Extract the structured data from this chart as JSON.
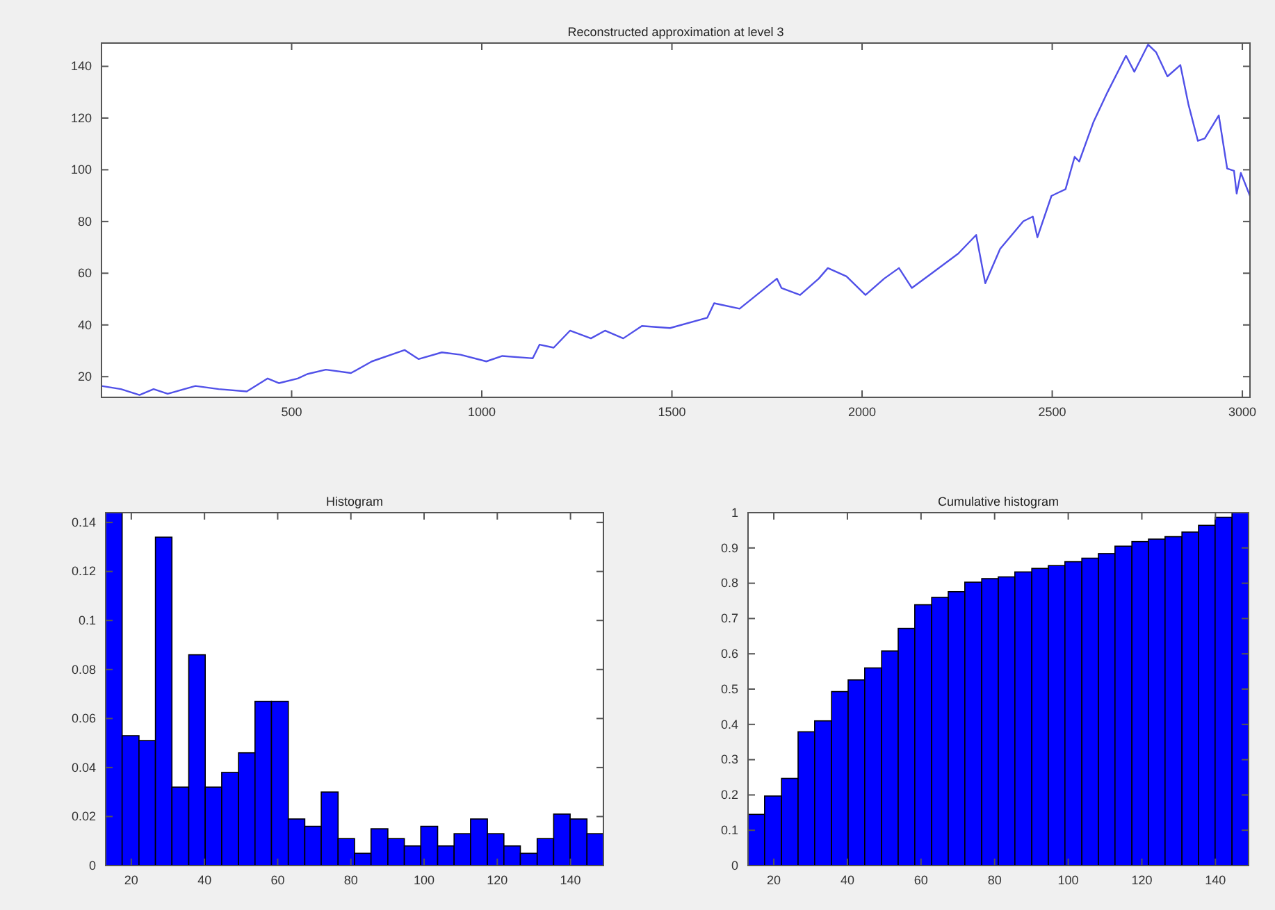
{
  "chart_data": [
    {
      "type": "line",
      "title": "Reconstructed approximation at level 3",
      "x": [
        0,
        51,
        100,
        137,
        174,
        247,
        308,
        382,
        437,
        467,
        516,
        541,
        590,
        656,
        711,
        797,
        834,
        895,
        944,
        1012,
        1054,
        1134,
        1152,
        1189,
        1232,
        1287,
        1324,
        1372,
        1421,
        1495,
        1593,
        1611,
        1678,
        1776,
        1788,
        1837,
        1886,
        1910,
        1959,
        2009,
        2058,
        2097,
        2131,
        2180,
        2253,
        2300,
        2324,
        2363,
        2424,
        2449,
        2461,
        2498,
        2535,
        2559,
        2571,
        2608,
        2645,
        2694,
        2716,
        2752,
        2773,
        2803,
        2837,
        2858,
        2883,
        2901,
        2938,
        2960,
        2978,
        2985,
        2996,
        3020
      ],
      "series": [
        {
          "color": "#5050e8",
          "values": [
            16.4,
            15.2,
            12.9,
            15.2,
            13.4,
            16.4,
            15.2,
            14.3,
            19.3,
            17.5,
            19.3,
            21,
            22.7,
            21.4,
            25.9,
            30.3,
            26.8,
            29.4,
            28.5,
            25.9,
            28,
            27.1,
            32.4,
            31.2,
            37.8,
            34.8,
            37.8,
            34.8,
            39.6,
            38.8,
            42.8,
            48.4,
            46.3,
            57.9,
            54.3,
            51.6,
            57.9,
            62,
            58.8,
            51.6,
            57.9,
            62,
            54.3,
            59.6,
            67.6,
            74.8,
            56.1,
            69.4,
            80.1,
            81.9,
            73.9,
            89.9,
            92.5,
            105,
            103.2,
            118.3,
            129.9,
            144.1,
            137.9,
            148.4,
            145.5,
            136.1,
            140.5,
            125.4,
            111.2,
            112.1,
            121,
            100.5,
            99.6,
            90.8,
            98.8,
            89.9
          ]
        }
      ],
      "xlim": [
        0,
        3020
      ],
      "xticks": [
        500,
        1000,
        1500,
        2000,
        2500,
        3000
      ],
      "ylim": [
        12,
        149
      ],
      "yticks": [
        20,
        40,
        60,
        80,
        100,
        120,
        140
      ]
    },
    {
      "type": "histogram",
      "title": "Histogram",
      "color": "#0000ff",
      "bins": [
        13,
        17.5,
        22.1,
        26.6,
        31.1,
        35.7,
        40.2,
        44.7,
        49.3,
        53.8,
        58.3,
        62.9,
        67.4,
        71.9,
        76.5,
        81,
        85.5,
        90.1,
        94.6,
        99.1,
        103.7,
        108.2,
        112.7,
        117.3,
        121.8,
        126.3,
        130.9,
        135.4,
        139.9,
        144.5,
        149
      ],
      "values": [
        0.144,
        0.053,
        0.051,
        0.134,
        0.032,
        0.086,
        0.032,
        0.038,
        0.046,
        0.067,
        0.067,
        0.019,
        0.016,
        0.03,
        0.011,
        0.005,
        0.015,
        0.011,
        0.008,
        0.016,
        0.008,
        0.013,
        0.019,
        0.013,
        0.008,
        0.005,
        0.011,
        0.021,
        0.019,
        0.013
      ],
      "xlim": [
        13,
        149
      ],
      "xticks": [
        20,
        40,
        60,
        80,
        100,
        120,
        140
      ],
      "ylim": [
        0,
        0.144
      ],
      "yticks": [
        0,
        0.02,
        0.04,
        0.06,
        0.08,
        0.1,
        0.12,
        0.14
      ]
    },
    {
      "type": "histogram",
      "title": "Cumulative histogram",
      "color": "#0000ff",
      "bins": [
        13,
        17.5,
        22.1,
        26.6,
        31.1,
        35.7,
        40.2,
        44.7,
        49.3,
        53.8,
        58.3,
        62.9,
        67.4,
        71.9,
        76.5,
        81,
        85.5,
        90.1,
        94.6,
        99.1,
        103.7,
        108.2,
        112.7,
        117.3,
        121.8,
        126.3,
        130.9,
        135.4,
        139.9,
        144.5,
        149
      ],
      "values": [
        0.145,
        0.197,
        0.247,
        0.379,
        0.41,
        0.493,
        0.526,
        0.56,
        0.608,
        0.672,
        0.739,
        0.76,
        0.776,
        0.803,
        0.813,
        0.818,
        0.832,
        0.842,
        0.85,
        0.861,
        0.871,
        0.884,
        0.905,
        0.918,
        0.925,
        0.932,
        0.945,
        0.964,
        0.987,
        1
      ],
      "xlim": [
        13,
        149
      ],
      "xticks": [
        20,
        40,
        60,
        80,
        100,
        120,
        140
      ],
      "ylim": [
        0,
        1
      ],
      "yticks": [
        0,
        0.1,
        0.2,
        0.3,
        0.4,
        0.5,
        0.6,
        0.7,
        0.8,
        0.9,
        1
      ]
    }
  ]
}
